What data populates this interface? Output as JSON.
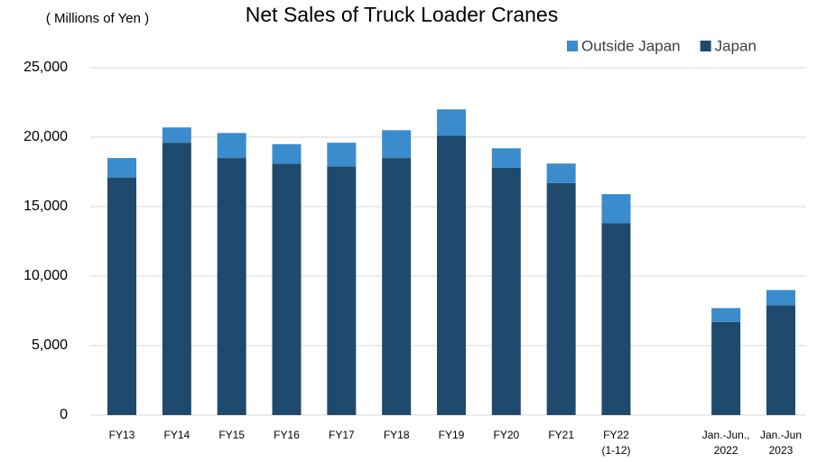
{
  "chart_data": {
    "type": "stacked_bar",
    "title": "Net Sales of Truck Loader Cranes",
    "unit_label": "( Millions of Yen )",
    "categories": [
      [
        "FY13"
      ],
      [
        "FY14"
      ],
      [
        "FY15"
      ],
      [
        "FY16"
      ],
      [
        "FY17"
      ],
      [
        "FY18"
      ],
      [
        "FY19"
      ],
      [
        "FY20"
      ],
      [
        "FY21"
      ],
      [
        "FY22",
        "(1-12)"
      ],
      null,
      [
        "Jan.-Jun.,",
        "2022"
      ],
      [
        "Jan.-Jun",
        "2023"
      ]
    ],
    "series": [
      {
        "name": "Outside Japan",
        "color": "#3a8ccc",
        "values": [
          1400,
          1100,
          1800,
          1400,
          1700,
          2000,
          1900,
          1400,
          1400,
          2100,
          null,
          1000,
          1100
        ]
      },
      {
        "name": "Japan",
        "color": "#1f4a6d",
        "values": [
          17100,
          19600,
          18500,
          18100,
          17900,
          18500,
          20100,
          17800,
          16700,
          13800,
          null,
          6700,
          7900
        ]
      }
    ],
    "ylim": [
      0,
      25000
    ],
    "yticks": [
      0,
      {
        "value": 5000,
        "label": "5,000"
      },
      {
        "value": 10000,
        "label": "10,000"
      },
      {
        "value": 15000,
        "label": "15,000"
      },
      {
        "value": 20000,
        "label": "20,000"
      },
      {
        "value": 25000,
        "label": "25,000"
      }
    ],
    "grid": true,
    "legend": "top-right"
  }
}
